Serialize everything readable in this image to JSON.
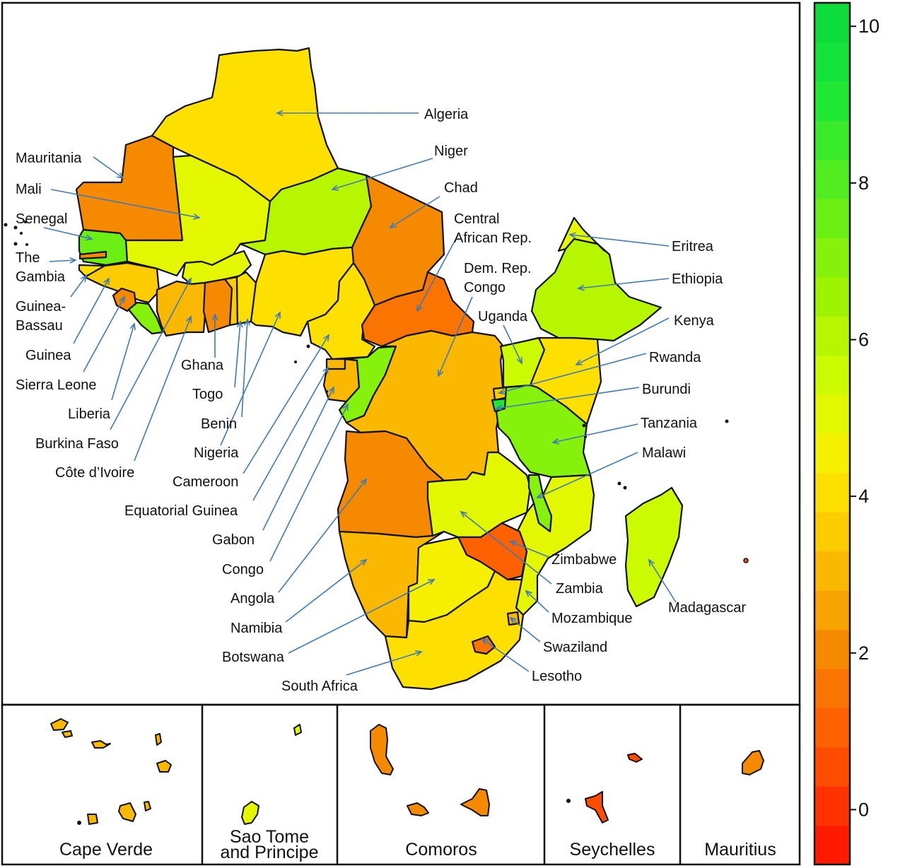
{
  "countries": {
    "algeria": {
      "name": "Algeria",
      "value": 3.9
    },
    "mauritania": {
      "name": "Mauritania",
      "value": 1.9
    },
    "mali": {
      "name": "Mali",
      "value": 4.9
    },
    "niger": {
      "name": "Niger",
      "value": 6.0
    },
    "chad": {
      "name": "Chad",
      "value": 1.8
    },
    "senegal": {
      "name": "Senegal",
      "value": 7.3
    },
    "gambia": {
      "name": "The\nGambia",
      "value": 1.9
    },
    "guinea_bissau": {
      "name": "Guinea-\nBassau",
      "value": 3.8
    },
    "guinea": {
      "name": "Guinea",
      "value": 3.4
    },
    "sierra_leone": {
      "name": "Sierra Leone",
      "value": 2.2
    },
    "liberia": {
      "name": "Liberia",
      "value": 7.2
    },
    "burkina_faso": {
      "name": "Burkina Faso",
      "value": 5.2
    },
    "cote_divoire": {
      "name": "Côte d’Ivoire",
      "value": 3.0
    },
    "ghana": {
      "name": "Ghana",
      "value": 1.8
    },
    "togo": {
      "name": "Togo",
      "value": 3.5
    },
    "benin": {
      "name": "Benin",
      "value": 4.1
    },
    "nigeria": {
      "name": "Nigeria",
      "value": 3.8
    },
    "cameroon": {
      "name": "Cameroon",
      "value": 3.8
    },
    "eq_guinea": {
      "name": "Equatorial Guinea",
      "value": 3.0
    },
    "gabon": {
      "name": "Gabon",
      "value": 3.2
    },
    "congo": {
      "name": "Congo",
      "value": 7.1
    },
    "car": {
      "name": "Central\nAfrican Rep.",
      "value": 1.7
    },
    "drc": {
      "name": "Dem. Rep.\nCongo",
      "value": 3.0
    },
    "angola": {
      "name": "Angola",
      "value": 1.8
    },
    "namibia": {
      "name": "Namibia",
      "value": 3.1
    },
    "botswana": {
      "name": "Botswana",
      "value": 4.6
    },
    "south_africa": {
      "name": "South Africa",
      "value": 3.8
    },
    "lesotho": {
      "name": "Lesotho",
      "value": 1.6
    },
    "swaziland": {
      "name": "Swaziland",
      "value": 2.9
    },
    "zimbabwe": {
      "name": "Zimbabwe",
      "value": 1.2
    },
    "zambia": {
      "name": "Zambia",
      "value": 5.0
    },
    "mozambique": {
      "name": "Mozambique",
      "value": 5.1
    },
    "malawi": {
      "name": "Malawi",
      "value": 7.0
    },
    "tanzania": {
      "name": "Tanzania",
      "value": 7.0
    },
    "burundi": {
      "name": "Burundi",
      "value": 9.0
    },
    "rwanda": {
      "name": "Rwanda",
      "value": 3.6
    },
    "kenya": {
      "name": "Kenya",
      "value": 3.9
    },
    "uganda": {
      "name": "Uganda",
      "value": 5.7
    },
    "ethiopia": {
      "name": "Ethiopia",
      "value": 6.2
    },
    "eritrea": {
      "name": "Eritrea",
      "value": 4.8
    },
    "madagascar": {
      "name": "Madagascar",
      "value": 5.3
    }
  },
  "insets": {
    "cape_verde": {
      "name": "Cape Verde",
      "value": 2.8
    },
    "sao_tome": {
      "name": "Sao Tome\nand Principe",
      "value": 4.9
    },
    "comoros": {
      "name": "Comoros",
      "value": 2.0
    },
    "seychelles": {
      "name": "Seychelles",
      "value": 0.3
    },
    "mauritius": {
      "name": "Mauritius",
      "value": 2.2
    }
  },
  "colorbar": {
    "min": -0.7,
    "max": 10.3,
    "ticks": [
      0,
      2,
      4,
      6,
      8,
      10
    ],
    "tick_labels": [
      "0",
      "2",
      "4",
      "6",
      "8",
      "10"
    ],
    "bins": [
      "#ff1a00",
      "#ff3200",
      "#ff4d00",
      "#fd6100",
      "#f97400",
      "#f58a00",
      "#f7a300",
      "#fbb800",
      "#fccb00",
      "#fde000",
      "#f5f000",
      "#e3f700",
      "#ccfa00",
      "#b6f600",
      "#9ef300",
      "#86f10a",
      "#6cef14",
      "#52ed20",
      "#38ea2a",
      "#20e732",
      "#12e23a",
      "#0ddc3a"
    ]
  }
}
